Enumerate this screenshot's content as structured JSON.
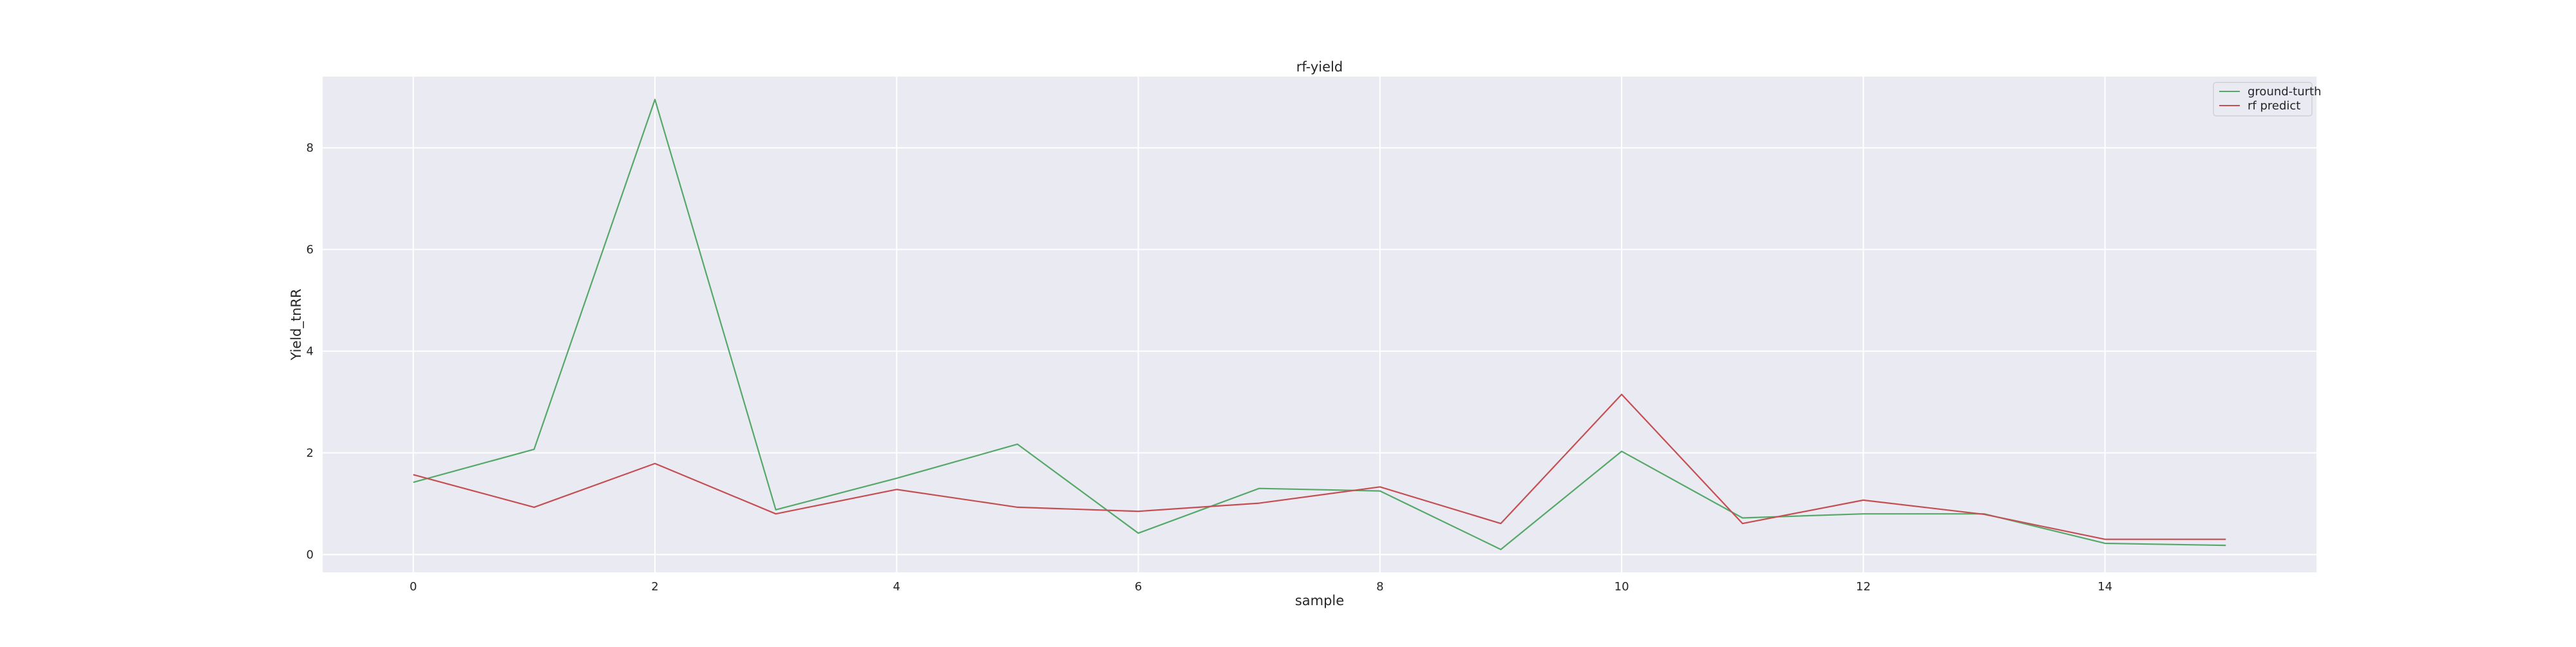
{
  "chart_data": {
    "type": "line",
    "title": "rf-yield",
    "xlabel": "sample",
    "ylabel": "Yield_tnRR",
    "x": [
      0,
      1,
      2,
      3,
      4,
      5,
      6,
      7,
      8,
      9,
      10,
      11,
      12,
      13,
      14,
      15
    ],
    "xticks": [
      0,
      2,
      4,
      6,
      8,
      10,
      12,
      14
    ],
    "yticks": [
      0,
      2,
      4,
      6,
      8
    ],
    "xlim": [
      -0.75,
      15.75
    ],
    "ylim": [
      -0.35,
      9.4
    ],
    "grid": true,
    "legend_position": "top-right",
    "series": [
      {
        "name": "ground-turth",
        "color": "#55a868",
        "values": [
          1.42,
          2.07,
          8.95,
          0.88,
          1.5,
          2.17,
          0.42,
          1.3,
          1.25,
          0.1,
          2.03,
          0.72,
          0.8,
          0.8,
          0.22,
          0.18
        ]
      },
      {
        "name": "rf predict",
        "color": "#c44e52",
        "values": [
          1.57,
          0.93,
          1.79,
          0.8,
          1.28,
          0.93,
          0.85,
          1.01,
          1.33,
          0.61,
          3.15,
          0.61,
          1.07,
          0.79,
          0.3,
          0.3
        ]
      }
    ]
  }
}
